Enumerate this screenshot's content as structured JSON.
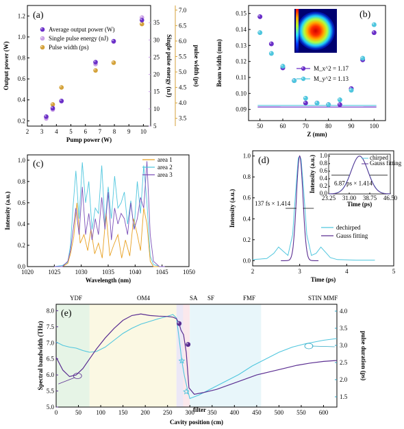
{
  "chart_data": [
    {
      "id": "a",
      "type": "scatter",
      "panel_label": "(a)",
      "xlabel": "Pump power (W)",
      "ylabel": "Output power (W)",
      "ylabel_right1": "Single pulse energy (nJ)",
      "ylabel_right2": "pulse width (ps)",
      "xlim": [
        2,
        10.5
      ],
      "ylim": [
        0.15,
        1.3
      ],
      "xticks": [
        "2",
        "3",
        "4",
        "5",
        "6",
        "7",
        "8",
        "9",
        "10"
      ],
      "yticks": [
        "0.2",
        "0.4",
        "0.6",
        "0.8",
        "1.0",
        "1.2"
      ],
      "y2lim": [
        5,
        40
      ],
      "y2ticks": [
        "5",
        "10",
        "15",
        "20",
        "25",
        "30",
        "35"
      ],
      "y3lim": [
        3.25,
        7.15
      ],
      "y3ticks": [
        "3.5",
        "4.0",
        "4.5",
        "5.0",
        "5.5",
        "6.0",
        "6.5",
        "7.0"
      ],
      "legend": [
        "Average output power (W)",
        "Single pulse energy (nJ)",
        "Pulse width (ps)"
      ],
      "series": [
        {
          "name": "Average output power (W)",
          "color": "#6a2fc8",
          "x": [
            3.3,
            3.75,
            4.35,
            6.7,
            7.95,
            9.9
          ],
          "y": [
            0.24,
            0.32,
            0.39,
            0.76,
            0.96,
            1.16
          ]
        },
        {
          "name": "Single pulse energy (nJ)",
          "color": "#c9a0e6",
          "x": [
            3.3,
            3.75,
            4.35,
            6.7,
            7.95,
            9.9
          ],
          "y": [
            7.2,
            9.8,
            12.2,
            23.0,
            29.5,
            36.5
          ]
        },
        {
          "name": "Pulse width (ps)",
          "color": "#d4a23a",
          "x": [
            3.3,
            3.75,
            4.35,
            6.7,
            7.95,
            9.9
          ],
          "y": [
            3.55,
            3.95,
            4.5,
            5.05,
            5.3,
            6.55
          ]
        }
      ]
    },
    {
      "id": "b",
      "type": "scatter",
      "panel_label": "(b)",
      "xlabel": "Z (mm)",
      "ylabel": "Beam width (mm)",
      "xlim": [
        45,
        105
      ],
      "ylim": [
        0.083,
        0.155
      ],
      "xticks": [
        "50",
        "60",
        "70",
        "80",
        "90",
        "100"
      ],
      "yticks": [
        "0.09",
        "0.10",
        "0.11",
        "0.12",
        "0.13",
        "0.14",
        "0.15"
      ],
      "legend": [
        "M_x^2 = 1.17",
        "M_y^2 = 1.13"
      ],
      "series": [
        {
          "name": "M_x^2 = 1.17",
          "color": "#6a2fc8",
          "x": [
            50,
            55,
            60,
            65,
            70,
            75,
            80,
            85,
            90,
            95,
            100
          ],
          "y": [
            0.148,
            0.131,
            0.116,
            0.108,
            0.094,
            0.094,
            0.093,
            0.093,
            0.103,
            0.121,
            0.138
          ]
        },
        {
          "name": "M_y^2 = 1.13",
          "color": "#4fc6de",
          "x": [
            50,
            55,
            60,
            65,
            70,
            75,
            80,
            85,
            90,
            95,
            100
          ],
          "y": [
            0.138,
            0.125,
            0.117,
            0.108,
            0.097,
            0.094,
            0.093,
            0.096,
            0.102,
            0.122,
            0.143
          ]
        }
      ],
      "fits": [
        {
          "color": "#6a2fc8",
          "x0": 77,
          "y0": 0.0915,
          "k": 6.25e-05
        },
        {
          "color": "#4fc6de",
          "x0": 77,
          "y0": 0.0925,
          "k": 6.3e-05
        }
      ]
    },
    {
      "id": "c",
      "type": "line",
      "panel_label": "(c)",
      "xlabel": "Wavelength (nm)",
      "ylabel": "Intensity (a.u.)",
      "xlim": [
        1020,
        1050
      ],
      "ylim": [
        0,
        1.05
      ],
      "xticks": [
        "1020",
        "1025",
        "1030",
        "1035",
        "1040",
        "1045",
        "1050"
      ],
      "yticks": [
        "0.0",
        "0.2",
        "0.4",
        "0.6",
        "0.8",
        "1.0"
      ],
      "legend": [
        "area 1",
        "area 2",
        "area 3"
      ],
      "series": [
        {
          "name": "area 1",
          "color": "#e8a020",
          "x": [
            1025,
            1026.5,
            1027.5,
            1028.0,
            1028.6,
            1029.2,
            1029.8,
            1030.5,
            1031.2,
            1031.8,
            1032.5,
            1033.2,
            1033.9,
            1034.6,
            1035.3,
            1036.0,
            1036.8,
            1037.5,
            1038.2,
            1039.0,
            1039.7,
            1040.4,
            1041.0,
            1041.6,
            1042.2,
            1042.8,
            1043.4,
            1044.5,
            1045.5
          ],
          "y": [
            0,
            0,
            0.03,
            0.12,
            0.28,
            0.6,
            0.22,
            0.3,
            0.15,
            0.35,
            0.12,
            0.22,
            0.08,
            0.5,
            0.1,
            0.2,
            0.3,
            0.08,
            0.25,
            0.1,
            0.45,
            0.3,
            0.15,
            0.55,
            0.4,
            0.05,
            0,
            0,
            0
          ]
        },
        {
          "name": "area 2",
          "color": "#4fc6de",
          "x": [
            1025,
            1026.5,
            1027.5,
            1028.0,
            1028.5,
            1029.0,
            1029.6,
            1030.2,
            1030.8,
            1031.4,
            1032.0,
            1032.6,
            1033.2,
            1033.8,
            1034.4,
            1035.0,
            1035.6,
            1036.2,
            1036.8,
            1037.4,
            1038.0,
            1038.6,
            1039.2,
            1039.8,
            1040.4,
            1041.0,
            1041.6,
            1042.2,
            1042.8,
            1043.4,
            1044.5,
            1045.5
          ],
          "y": [
            0,
            0.01,
            0.04,
            0.2,
            0.58,
            0.9,
            0.45,
            0.98,
            0.6,
            0.8,
            0.35,
            0.55,
            0.5,
            0.95,
            0.4,
            0.75,
            0.45,
            0.85,
            0.55,
            0.6,
            0.7,
            0.4,
            0.62,
            0.35,
            0.8,
            0.5,
            0.95,
            0.6,
            0.1,
            0.02,
            0,
            0
          ]
        },
        {
          "name": "area 3",
          "color": "#7a4fb8",
          "x": [
            1025,
            1026.5,
            1027.5,
            1028.0,
            1028.5,
            1029.0,
            1029.6,
            1030.2,
            1030.8,
            1031.4,
            1032.0,
            1032.6,
            1033.2,
            1033.8,
            1034.4,
            1035.0,
            1035.6,
            1036.2,
            1036.8,
            1037.4,
            1038.0,
            1038.6,
            1039.2,
            1039.8,
            1040.4,
            1041.0,
            1041.6,
            1042.2,
            1042.8,
            1043.4,
            1044.5,
            1045.5
          ],
          "y": [
            0,
            0,
            0.05,
            0.15,
            0.35,
            0.55,
            0.3,
            0.75,
            0.3,
            0.5,
            0.25,
            0.45,
            0.3,
            0.65,
            0.35,
            0.7,
            0.25,
            0.55,
            0.4,
            0.5,
            0.45,
            0.3,
            0.6,
            0.35,
            0.45,
            0.65,
            0.55,
            0.99,
            0.3,
            0.05,
            0,
            0
          ]
        }
      ]
    },
    {
      "id": "d",
      "type": "line",
      "panel_label": "(d)",
      "xlabel": "Time (ps)",
      "ylabel": "Intensity (a.u.)",
      "xlim": [
        2,
        5
      ],
      "ylim": [
        -0.05,
        1.05
      ],
      "xticks": [
        "2",
        "3",
        "4",
        "5"
      ],
      "yticks": [
        "0.0",
        "0.2",
        "0.4",
        "0.6",
        "0.8",
        "1.0"
      ],
      "legend": [
        "dechirped",
        "Gauss fitting"
      ],
      "annotation": "137 fs × 1.414",
      "series": [
        {
          "name": "dechirped",
          "color": "#4fc6de",
          "x": [
            2.0,
            2.3,
            2.45,
            2.55,
            2.65,
            2.75,
            2.85,
            2.92,
            2.97,
            3.0,
            3.03,
            3.08,
            3.15,
            3.25,
            3.35,
            3.45,
            3.55,
            3.65,
            3.8,
            4.2,
            4.6
          ],
          "y": [
            0.01,
            0.02,
            0.07,
            0.13,
            0.09,
            0.05,
            0.25,
            0.7,
            0.98,
            1.0,
            0.97,
            0.7,
            0.25,
            0.05,
            0.07,
            0.13,
            0.08,
            0.03,
            0.01,
            0.005,
            0.005
          ]
        },
        {
          "name": "Gauss fitting",
          "color": "#5a2d91",
          "gauss": {
            "mu": 3.0,
            "sigma": 0.07,
            "amp": 1.0
          }
        }
      ],
      "inset": {
        "xlabel": "Time (ps)",
        "ylabel": "Intensity (a.u.)",
        "xlim": [
          23.25,
          46.5
        ],
        "ylim": [
          0,
          1.05
        ],
        "xticks": [
          "23.25",
          "31.00",
          "38.75",
          "46.50"
        ],
        "yticks": [
          "0.0",
          "0.2",
          "0.4",
          "0.6",
          "0.8",
          "1.0"
        ],
        "legend": [
          "chirped",
          "Gauss fitting"
        ],
        "annotation": "6.87 ps × 1.414",
        "series": [
          {
            "name": "chirped",
            "color": "#4fc6de",
            "gauss": {
              "mu": 34.9,
              "sigma": 3.2,
              "amp": 1.0
            }
          },
          {
            "name": "Gauss fitting",
            "color": "#5a2d91",
            "gauss": {
              "mu": 34.9,
              "sigma": 3.15,
              "amp": 1.0
            }
          }
        ]
      }
    },
    {
      "id": "e",
      "type": "line",
      "panel_label": "(e)",
      "xlabel": "Cavity position (cm)",
      "ylabel": "Spectral bandwidth (THz)",
      "ylabel_right": "pulse duration (ps)",
      "xlim": [
        0,
        630
      ],
      "ylim": [
        5,
        8.2
      ],
      "y2lim": [
        1.2,
        4.2
      ],
      "xticks": [
        "0",
        "50",
        "100",
        "150",
        "200",
        "250",
        "300",
        "350",
        "400",
        "450",
        "500",
        "550",
        "600"
      ],
      "yticks": [
        "5.0",
        "5.5",
        "6.0",
        "6.5",
        "7.0",
        "7.5",
        "8.0"
      ],
      "y2ticks": [
        "1.5",
        "2.0",
        "2.5",
        "3.0",
        "3.5",
        "4.0"
      ],
      "regions": [
        {
          "label": "YDF",
          "x0": 0,
          "x1": 75,
          "color": "#e6f4e6"
        },
        {
          "label": "OM4",
          "x0": 75,
          "x1": 270,
          "color": "#fbf8e3"
        },
        {
          "label": "SA",
          "x0": 270,
          "x1": 285,
          "color": "#ece8f6"
        },
        {
          "label": "SF",
          "x0": 285,
          "x1": 300,
          "color": "#fbe8ec"
        },
        {
          "label": "FMF",
          "x0": 300,
          "x1": 460,
          "color": "#e8f6fa"
        },
        {
          "label": "STIN MMF",
          "x0": 460,
          "x1": 630,
          "color": "#ffffff"
        }
      ],
      "filter_label": "filter",
      "series": [
        {
          "name": "Spectral bandwidth (THz)",
          "color": "#5a2d91",
          "axis": "left",
          "x": [
            0,
            15,
            30,
            45,
            60,
            75,
            90,
            110,
            130,
            150,
            170,
            190,
            210,
            230,
            250,
            262,
            270,
            276,
            280,
            286,
            292,
            298,
            310,
            330,
            360,
            390,
            420,
            450,
            480,
            510,
            540,
            570,
            600,
            630
          ],
          "y": [
            6.55,
            6.15,
            5.95,
            6.0,
            6.2,
            6.5,
            6.8,
            7.15,
            7.45,
            7.7,
            7.85,
            7.9,
            7.85,
            7.83,
            7.82,
            7.8,
            7.75,
            7.6,
            7.4,
            7.25,
            6.7,
            5.6,
            5.4,
            5.45,
            5.55,
            5.7,
            5.85,
            6.0,
            6.1,
            6.2,
            6.3,
            6.37,
            6.42,
            6.45
          ]
        },
        {
          "name": "pulse duration (ps)",
          "color": "#4fc6de",
          "axis": "right",
          "x": [
            0,
            15,
            30,
            45,
            60,
            75,
            90,
            110,
            130,
            150,
            170,
            190,
            210,
            230,
            250,
            262,
            270,
            276,
            282,
            288,
            295,
            300,
            320,
            350,
            380,
            410,
            440,
            470,
            500,
            530,
            560,
            600,
            630
          ],
          "y": [
            3.1,
            3.0,
            2.95,
            2.92,
            2.85,
            2.8,
            2.82,
            2.95,
            3.15,
            3.35,
            3.5,
            3.62,
            3.7,
            3.78,
            3.85,
            3.9,
            3.8,
            3.2,
            2.55,
            2.1,
            1.7,
            1.45,
            1.55,
            1.75,
            1.95,
            2.15,
            2.4,
            2.6,
            2.8,
            2.95,
            3.05,
            3.15,
            3.2
          ]
        }
      ],
      "markers_left": [
        {
          "x": 276,
          "y": 7.6
        },
        {
          "x": 296,
          "y": 6.95
        }
      ],
      "markers_right": [
        {
          "x": 282,
          "y": 2.55
        },
        {
          "x": 292,
          "y": 1.65
        }
      ]
    }
  ]
}
